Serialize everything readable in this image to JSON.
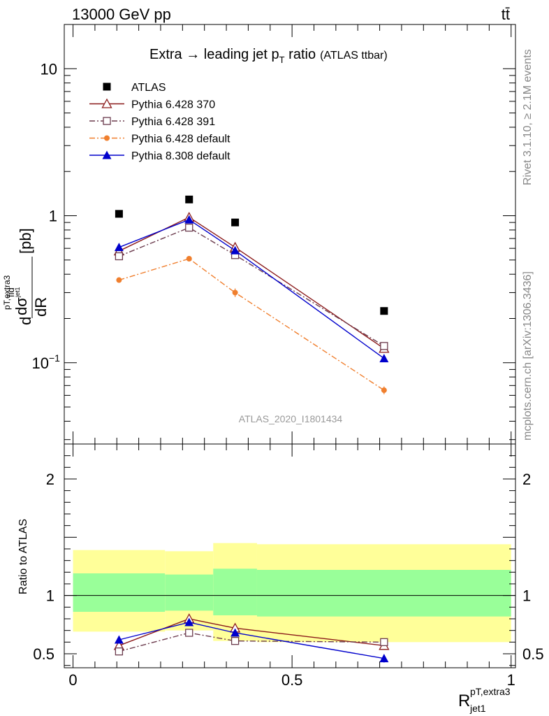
{
  "header": {
    "left": "13000 GeV pp",
    "right": "tt̄"
  },
  "side_text": {
    "rivet": "Rivet 3.1.10, ≥ 2.1M events",
    "mcplots": "mcplots.cern.ch [arXiv:1306.3436]"
  },
  "chart_data": {
    "type": "scatter",
    "title": "Extra → leading jet pT ratio",
    "title_parts": {
      "main": "Extra → leading jet p",
      "sub": "T",
      "after": " ratio",
      "note": "(ATLAS ttbar)"
    },
    "analysis_label": "ATLAS_2020_I1801434",
    "xlabel": {
      "main": "R",
      "sup": "pT,extra3",
      "sub": "jet1"
    },
    "ylabel": {
      "prefix": "d",
      "sigma_sup": "fid",
      "suffix": "[pb]",
      "denom": "dR",
      "denom_sup": "pT,extra3",
      "denom_sub": "jet1"
    },
    "ratio_ylabel": "Ratio to ATLAS",
    "xlim": [
      -0.02,
      1.01
    ],
    "ylim": [
      0.028,
      20
    ],
    "yscale": "log",
    "ratio_ylim": [
      0.38,
      2.3
    ],
    "x_ticks": [
      "0",
      "0.5",
      "1"
    ],
    "y_ticks": [
      {
        "value": 10,
        "label": "10"
      },
      {
        "value": 1,
        "label": "1"
      },
      {
        "value": 0.1,
        "label": "10",
        "sup": "−1"
      }
    ],
    "ratio_ticks": [
      {
        "value": 0.5,
        "label": "0.5"
      },
      {
        "value": 1,
        "label": "1"
      },
      {
        "value": 2,
        "label": "2"
      }
    ],
    "legend_position": "top-left",
    "bins": [
      {
        "xlo": 0.0,
        "xhi": 0.21,
        "x": 0.105
      },
      {
        "xlo": 0.21,
        "xhi": 0.32,
        "x": 0.265
      },
      {
        "xlo": 0.32,
        "xhi": 0.42,
        "x": 0.37
      },
      {
        "xlo": 0.42,
        "xhi": 1.0,
        "x": 0.71
      }
    ],
    "band_yellow": [
      [
        0.69,
        1.39
      ],
      [
        0.7,
        1.38
      ],
      [
        0.61,
        1.45
      ],
      [
        0.6,
        1.44
      ]
    ],
    "band_green": [
      [
        0.86,
        1.19
      ],
      [
        0.87,
        1.18
      ],
      [
        0.83,
        1.23
      ],
      [
        0.82,
        1.22
      ]
    ],
    "series": [
      {
        "name": "ATLAS",
        "color": "#000000",
        "marker": "square-filled",
        "line": "none",
        "x": [
          0.105,
          0.265,
          0.37,
          0.71
        ],
        "values": [
          1.03,
          1.29,
          0.9,
          0.225
        ],
        "errors": [
          0,
          0,
          0,
          0
        ],
        "ratio": [
          1,
          1,
          1,
          1
        ],
        "ratio_err": [
          0,
          0,
          0,
          0
        ]
      },
      {
        "name": "Pythia 6.428 370",
        "color": "#8b1a1a",
        "marker": "triangle-open",
        "line": "solid",
        "x": [
          0.105,
          0.265,
          0.37,
          0.71
        ],
        "values": [
          0.575,
          0.975,
          0.61,
          0.125
        ],
        "errors": [
          0.01,
          0.02,
          0.015,
          0.005
        ],
        "ratio": [
          0.57,
          0.8,
          0.72,
          0.57
        ],
        "ratio_err": [
          0.02,
          0.025,
          0.03,
          0.02
        ]
      },
      {
        "name": "Pythia 6.428 391",
        "color": "#6b3b4d",
        "marker": "square-open",
        "line": "dashdot",
        "x": [
          0.105,
          0.265,
          0.37,
          0.71
        ],
        "values": [
          0.53,
          0.83,
          0.54,
          0.13
        ],
        "errors": [
          0.01,
          0.02,
          0.015,
          0.005
        ],
        "ratio": [
          0.52,
          0.68,
          0.61,
          0.6
        ],
        "ratio_err": [
          0.015,
          0.02,
          0.025,
          0.02
        ]
      },
      {
        "name": "Pythia 6.428 default",
        "color": "#f07f2e",
        "marker": "circle-filled",
        "line": "dashdot",
        "x": [
          0.105,
          0.265,
          0.37,
          0.71
        ],
        "values": [
          0.365,
          0.51,
          0.3,
          0.065
        ],
        "errors": [
          0.01,
          0.015,
          0.02,
          0.004
        ],
        "ratio": [],
        "ratio_err": []
      },
      {
        "name": "Pythia 8.308 default",
        "color": "#0000cc",
        "marker": "triangle-filled",
        "line": "solid",
        "x": [
          0.105,
          0.265,
          0.37,
          0.71
        ],
        "values": [
          0.61,
          0.94,
          0.58,
          0.107
        ],
        "errors": [
          0.015,
          0.02,
          0.02,
          0.005
        ],
        "ratio": [
          0.62,
          0.77,
          0.68,
          0.46
        ],
        "ratio_err": [
          0.025,
          0.025,
          0.03,
          0.035
        ]
      }
    ]
  }
}
